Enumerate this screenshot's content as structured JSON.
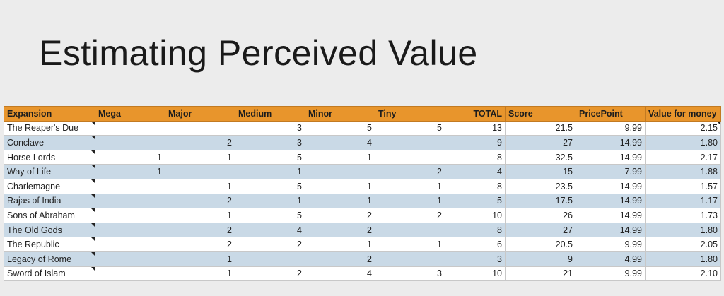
{
  "slide": {
    "title": "Estimating Perceived Value"
  },
  "table": {
    "headers": [
      "Expansion",
      "Mega",
      "Major",
      "Medium",
      "Minor",
      "Tiny",
      "TOTAL",
      "Score",
      "PricePoint",
      "Value for money"
    ],
    "rows": [
      [
        "The Reaper's Due",
        "",
        "",
        "3",
        "5",
        "5",
        "13",
        "21.5",
        "9.99",
        "2.15"
      ],
      [
        "Conclave",
        "",
        "2",
        "3",
        "4",
        "",
        "9",
        "27",
        "14.99",
        "1.80"
      ],
      [
        "Horse Lords",
        "1",
        "1",
        "5",
        "1",
        "",
        "8",
        "32.5",
        "14.99",
        "2.17"
      ],
      [
        "Way of Life",
        "1",
        "",
        "1",
        "",
        "2",
        "4",
        "15",
        "7.99",
        "1.88"
      ],
      [
        "Charlemagne",
        "",
        "1",
        "5",
        "1",
        "1",
        "8",
        "23.5",
        "14.99",
        "1.57"
      ],
      [
        "Rajas of India",
        "",
        "2",
        "1",
        "1",
        "1",
        "5",
        "17.5",
        "14.99",
        "1.17"
      ],
      [
        "Sons of Abraham",
        "",
        "1",
        "5",
        "2",
        "2",
        "10",
        "26",
        "14.99",
        "1.73"
      ],
      [
        "The Old Gods",
        "",
        "2",
        "4",
        "2",
        "",
        "8",
        "27",
        "14.99",
        "1.80"
      ],
      [
        "The Republic",
        "",
        "2",
        "2",
        "1",
        "1",
        "6",
        "20.5",
        "9.99",
        "2.05"
      ],
      [
        "Legacy of Rome",
        "",
        "1",
        "",
        "2",
        "",
        "3",
        "9",
        "4.99",
        "1.80"
      ],
      [
        "Sword of Islam",
        "",
        "1",
        "2",
        "4",
        "3",
        "10",
        "21",
        "9.99",
        "2.10"
      ]
    ]
  },
  "colors": {
    "header": "#e8952c",
    "band": "#c9d9e6",
    "background": "#ececec"
  }
}
